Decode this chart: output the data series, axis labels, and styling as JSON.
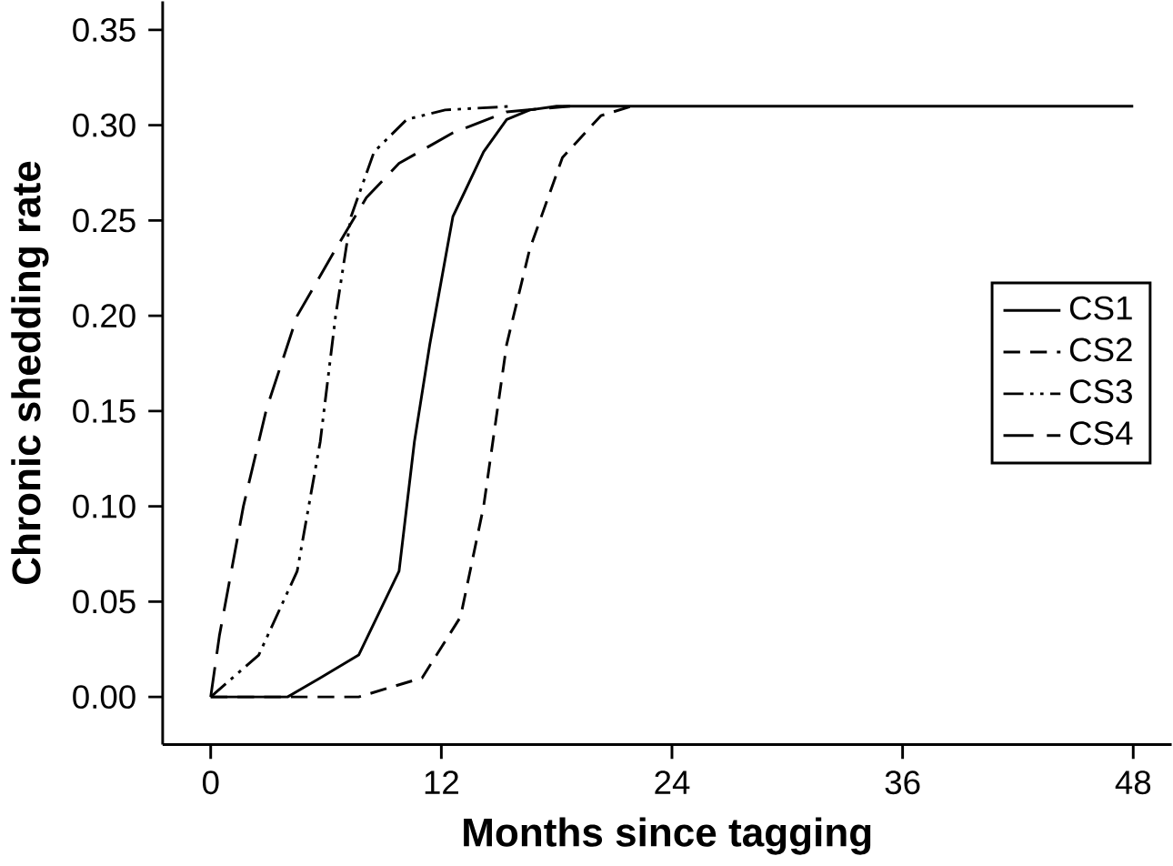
{
  "chart_data": {
    "type": "line",
    "xlabel": "Months since tagging",
    "ylabel": "Chronic shedding rate",
    "xlim": [
      -2.5,
      50
    ],
    "ylim": [
      -0.025,
      0.365
    ],
    "xticks": [
      0,
      12,
      24,
      36,
      48
    ],
    "yticks": [
      {
        "value": 0,
        "label": "0.00"
      },
      {
        "value": 0.05,
        "label": "0.05"
      },
      {
        "value": 0.1,
        "label": "0.10"
      },
      {
        "value": 0.15,
        "label": "0.15"
      },
      {
        "value": 0.2,
        "label": "0.20"
      },
      {
        "value": 0.25,
        "label": "0.25"
      },
      {
        "value": 0.3,
        "label": "0.30"
      },
      {
        "value": 0.35,
        "label": "0.35"
      }
    ],
    "grid": false,
    "legend": "right",
    "marker": "none",
    "series": [
      {
        "name": "CS1",
        "color": "#000000",
        "line_style": "solid",
        "x": [
          0,
          4,
          5.7,
          7.7,
          9.8,
          10.6,
          11.4,
          12.6,
          14.2,
          15.4,
          16.6,
          18,
          48
        ],
        "values": [
          0,
          0,
          0.01,
          0.022,
          0.066,
          0.134,
          0.185,
          0.252,
          0.286,
          0.303,
          0.308,
          0.31,
          0.31
        ]
      },
      {
        "name": "CS2",
        "color": "#000000",
        "line_style": "dashed",
        "x": [
          0,
          7.7,
          11,
          13,
          14.2,
          15.4,
          16.6,
          18.3,
          20.3,
          21.9
        ],
        "values": [
          0,
          0,
          0.01,
          0.042,
          0.1,
          0.185,
          0.235,
          0.283,
          0.305,
          0.31
        ]
      },
      {
        "name": "CS3",
        "color": "#000000",
        "line_style": "dashdotdot",
        "x": [
          0,
          2.5,
          4.5,
          5.7,
          6.5,
          7.3,
          8.5,
          10.2,
          12.2,
          15.8
        ],
        "values": [
          0,
          0.022,
          0.066,
          0.134,
          0.2,
          0.252,
          0.286,
          0.303,
          0.308,
          0.31
        ]
      },
      {
        "name": "CS4",
        "color": "#000000",
        "line_style": "longdashed",
        "x": [
          0,
          0.45,
          1.7,
          2.9,
          4.5,
          6.5,
          8.1,
          9.8,
          12.6,
          15.4,
          18.7
        ],
        "values": [
          0,
          0.032,
          0.1,
          0.151,
          0.2,
          0.235,
          0.262,
          0.28,
          0.296,
          0.307,
          0.31
        ]
      }
    ]
  }
}
